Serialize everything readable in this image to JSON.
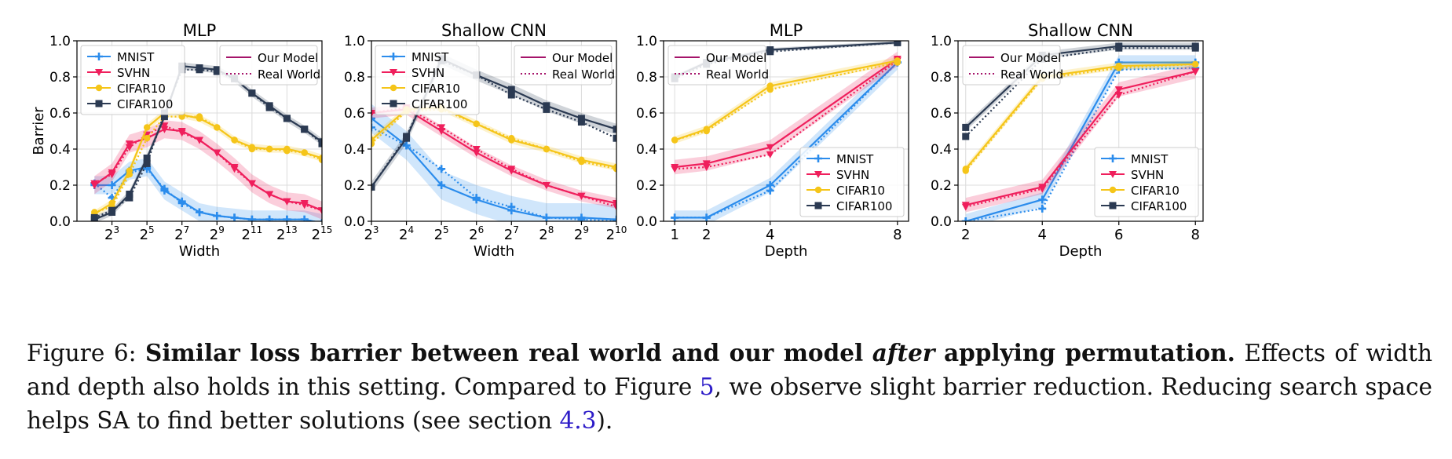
{
  "colors": {
    "MNIST": "#2b8cec",
    "SVHN": "#ef1f5c",
    "CIFAR10": "#f5c519",
    "CIFAR100": "#2b3a52",
    "legend_style": "#a5146a"
  },
  "legend_labels": {
    "styles": [
      "Our Model",
      "Real World"
    ],
    "datasets": [
      "MNIST",
      "SVHN",
      "CIFAR10",
      "CIFAR100"
    ]
  },
  "chart_data": [
    {
      "type": "line",
      "title": "MLP",
      "xlabel": "Width",
      "ylabel": "Barrier",
      "x_scale": "log2",
      "xlim": [
        2,
        32768
      ],
      "ylim": [
        0.0,
        1.0
      ],
      "grid": true,
      "x_ticks": [
        8,
        32,
        128,
        512,
        2048,
        8192,
        32768
      ],
      "x_tick_labels": [
        {
          "base": "2",
          "exp": "3"
        },
        {
          "base": "2",
          "exp": "5"
        },
        {
          "base": "2",
          "exp": "7"
        },
        {
          "base": "2",
          "exp": "9"
        },
        {
          "base": "2",
          "exp": "11"
        },
        {
          "base": "2",
          "exp": "13"
        },
        {
          "base": "2",
          "exp": "15"
        }
      ],
      "y_ticks": [
        "0.0",
        "0.2",
        "0.4",
        "0.6",
        "0.8",
        "1.0"
      ],
      "legend_styles_position": "top-right",
      "legend_datasets_position": "top-left",
      "x": [
        4,
        8,
        16,
        32,
        64,
        128,
        256,
        512,
        1024,
        2048,
        4096,
        8192,
        16384,
        32768
      ],
      "series": [
        {
          "name": "MNIST",
          "model": [
            0.2,
            0.2,
            0.28,
            0.3,
            0.17,
            0.11,
            0.05,
            0.03,
            0.02,
            0.01,
            0.01,
            0.01,
            0.01,
            -0.01
          ],
          "real": [
            0.21,
            0.13,
            0.27,
            0.29,
            0.18,
            0.1,
            0.05,
            0.03,
            0.02,
            0.01,
            0.01,
            0.01,
            0.01,
            -0.01
          ],
          "band": 0.05
        },
        {
          "name": "SVHN",
          "model": [
            0.2,
            0.27,
            0.43,
            0.46,
            0.51,
            0.5,
            0.45,
            0.38,
            0.3,
            0.21,
            0.15,
            0.11,
            0.1,
            0.06
          ],
          "real": [
            0.21,
            0.26,
            0.41,
            0.48,
            0.53,
            0.49,
            0.45,
            0.38,
            0.29,
            0.21,
            0.15,
            0.11,
            0.09,
            0.06
          ],
          "band": 0.05
        },
        {
          "name": "CIFAR10",
          "model": [
            0.04,
            0.1,
            0.28,
            0.52,
            0.6,
            0.59,
            0.57,
            0.52,
            0.45,
            0.41,
            0.4,
            0.4,
            0.38,
            0.35
          ],
          "real": [
            0.05,
            0.08,
            0.26,
            0.46,
            0.58,
            0.58,
            0.58,
            0.52,
            0.45,
            0.4,
            0.4,
            0.39,
            0.38,
            0.34
          ],
          "band": 0.02
        },
        {
          "name": "CIFAR100",
          "model": [
            0.01,
            0.05,
            0.15,
            0.35,
            0.58,
            0.86,
            0.85,
            0.84,
            0.79,
            0.71,
            0.64,
            0.57,
            0.51,
            0.44
          ],
          "real": [
            0.02,
            0.06,
            0.13,
            0.32,
            0.6,
            0.84,
            0.84,
            0.83,
            0.79,
            0.71,
            0.63,
            0.57,
            0.51,
            0.43
          ],
          "band": 0.02
        }
      ]
    },
    {
      "type": "line",
      "title": "Shallow CNN",
      "xlabel": "Width",
      "ylabel": "",
      "x_scale": "log2",
      "xlim": [
        8,
        1024
      ],
      "ylim": [
        0.0,
        1.0
      ],
      "grid": true,
      "x_ticks": [
        8,
        16,
        32,
        64,
        128,
        256,
        512,
        1024
      ],
      "x_tick_labels": [
        {
          "base": "2",
          "exp": "3"
        },
        {
          "base": "2",
          "exp": "4"
        },
        {
          "base": "2",
          "exp": "5"
        },
        {
          "base": "2",
          "exp": "6"
        },
        {
          "base": "2",
          "exp": "7"
        },
        {
          "base": "2",
          "exp": "8"
        },
        {
          "base": "2",
          "exp": "9"
        },
        {
          "base": "2",
          "exp": "10"
        }
      ],
      "y_ticks": [
        "0.0",
        "0.2",
        "0.4",
        "0.6",
        "0.8",
        "1.0"
      ],
      "legend_styles_position": "top-right",
      "legend_datasets_position": "top-left",
      "x": [
        8,
        16,
        32,
        64,
        128,
        256,
        512,
        1024
      ],
      "series": [
        {
          "name": "MNIST",
          "model": [
            0.57,
            0.42,
            0.2,
            0.12,
            0.06,
            0.02,
            0.02,
            0.01
          ],
          "real": [
            0.52,
            0.42,
            0.29,
            0.13,
            0.08,
            0.02,
            0.01,
            0.0
          ],
          "band": 0.08
        },
        {
          "name": "SVHN",
          "model": [
            0.6,
            0.62,
            0.5,
            0.38,
            0.28,
            0.2,
            0.14,
            0.1
          ],
          "real": [
            0.6,
            0.63,
            0.52,
            0.4,
            0.29,
            0.2,
            0.14,
            0.08
          ],
          "band": 0.03
        },
        {
          "name": "CIFAR10",
          "model": [
            0.45,
            0.62,
            0.63,
            0.54,
            0.45,
            0.4,
            0.34,
            0.3
          ],
          "real": [
            0.43,
            0.61,
            0.62,
            0.54,
            0.46,
            0.4,
            0.33,
            0.29
          ],
          "band": 0.02
        },
        {
          "name": "CIFAR100",
          "model": [
            0.19,
            0.46,
            0.9,
            0.81,
            0.73,
            0.64,
            0.57,
            0.51
          ],
          "real": [
            0.19,
            0.47,
            0.89,
            0.81,
            0.7,
            0.62,
            0.55,
            0.46
          ],
          "band": 0.03
        }
      ]
    },
    {
      "type": "line",
      "title": "MLP",
      "xlabel": "Depth",
      "ylabel": "",
      "x_scale": "linear",
      "xlim": [
        0.65,
        8.35
      ],
      "ylim": [
        0.0,
        1.0
      ],
      "grid": true,
      "x_ticks": [
        1,
        2,
        4,
        8
      ],
      "x_tick_labels": [
        {
          "base": "1",
          "exp": ""
        },
        {
          "base": "2",
          "exp": ""
        },
        {
          "base": "4",
          "exp": ""
        },
        {
          "base": "8",
          "exp": ""
        }
      ],
      "y_ticks": [
        "0.0",
        "0.2",
        "0.4",
        "0.6",
        "0.8",
        "1.0"
      ],
      "legend_styles_position": "top-left",
      "legend_datasets_position": "bottom-right",
      "x": [
        1,
        2,
        4,
        8
      ],
      "series": [
        {
          "name": "MNIST",
          "model": [
            0.02,
            0.02,
            0.2,
            0.88
          ],
          "real": [
            0.02,
            0.02,
            0.17,
            0.88
          ],
          "band": 0.04
        },
        {
          "name": "SVHN",
          "model": [
            0.3,
            0.32,
            0.41,
            0.9
          ],
          "real": [
            0.29,
            0.3,
            0.37,
            0.89
          ],
          "band": 0.04
        },
        {
          "name": "CIFAR10",
          "model": [
            0.45,
            0.51,
            0.75,
            0.89
          ],
          "real": [
            0.45,
            0.5,
            0.73,
            0.88
          ],
          "band": 0.02
        },
        {
          "name": "CIFAR100",
          "model": [
            0.8,
            0.88,
            0.95,
            0.99
          ],
          "real": [
            0.79,
            0.87,
            0.94,
            0.99
          ],
          "band": 0.01
        }
      ]
    },
    {
      "type": "line",
      "title": "Shallow CNN",
      "xlabel": "Depth",
      "ylabel": "",
      "x_scale": "linear",
      "xlim": [
        1.8,
        8.2
      ],
      "ylim": [
        0.0,
        1.0
      ],
      "grid": true,
      "x_ticks": [
        2,
        4,
        6,
        8
      ],
      "x_tick_labels": [
        {
          "base": "2",
          "exp": ""
        },
        {
          "base": "4",
          "exp": ""
        },
        {
          "base": "6",
          "exp": ""
        },
        {
          "base": "8",
          "exp": ""
        }
      ],
      "y_ticks": [
        "0.0",
        "0.2",
        "0.4",
        "0.6",
        "0.8",
        "1.0"
      ],
      "legend_styles_position": "top-left",
      "legend_datasets_position": "bottom-right",
      "x": [
        2,
        4,
        6,
        8
      ],
      "series": [
        {
          "name": "MNIST",
          "model": [
            0.0,
            0.12,
            0.88,
            0.88
          ],
          "real": [
            0.0,
            0.07,
            0.84,
            0.85
          ],
          "band": 0.04
        },
        {
          "name": "SVHN",
          "model": [
            0.09,
            0.19,
            0.73,
            0.83
          ],
          "real": [
            0.08,
            0.18,
            0.7,
            0.83
          ],
          "band": 0.04
        },
        {
          "name": "CIFAR10",
          "model": [
            0.29,
            0.8,
            0.86,
            0.87
          ],
          "real": [
            0.28,
            0.79,
            0.85,
            0.87
          ],
          "band": 0.02
        },
        {
          "name": "CIFAR100",
          "model": [
            0.52,
            0.92,
            0.97,
            0.97
          ],
          "real": [
            0.47,
            0.9,
            0.96,
            0.96
          ],
          "band": 0.02
        }
      ]
    }
  ],
  "caption": {
    "label": "Figure 6:",
    "bold_part1": "Similar loss barrier between real world and our model",
    "bold_italic": "after",
    "bold_part2": "applying permutation.",
    "text1": "Effects of width and depth also holds in this setting. Compared to Figure",
    "ref_figure": "5",
    "text2": ", we observe slight barrier reduction. Reducing search space helps SA to find better solutions (see section",
    "ref_section": "4.3",
    "text3": ")."
  }
}
